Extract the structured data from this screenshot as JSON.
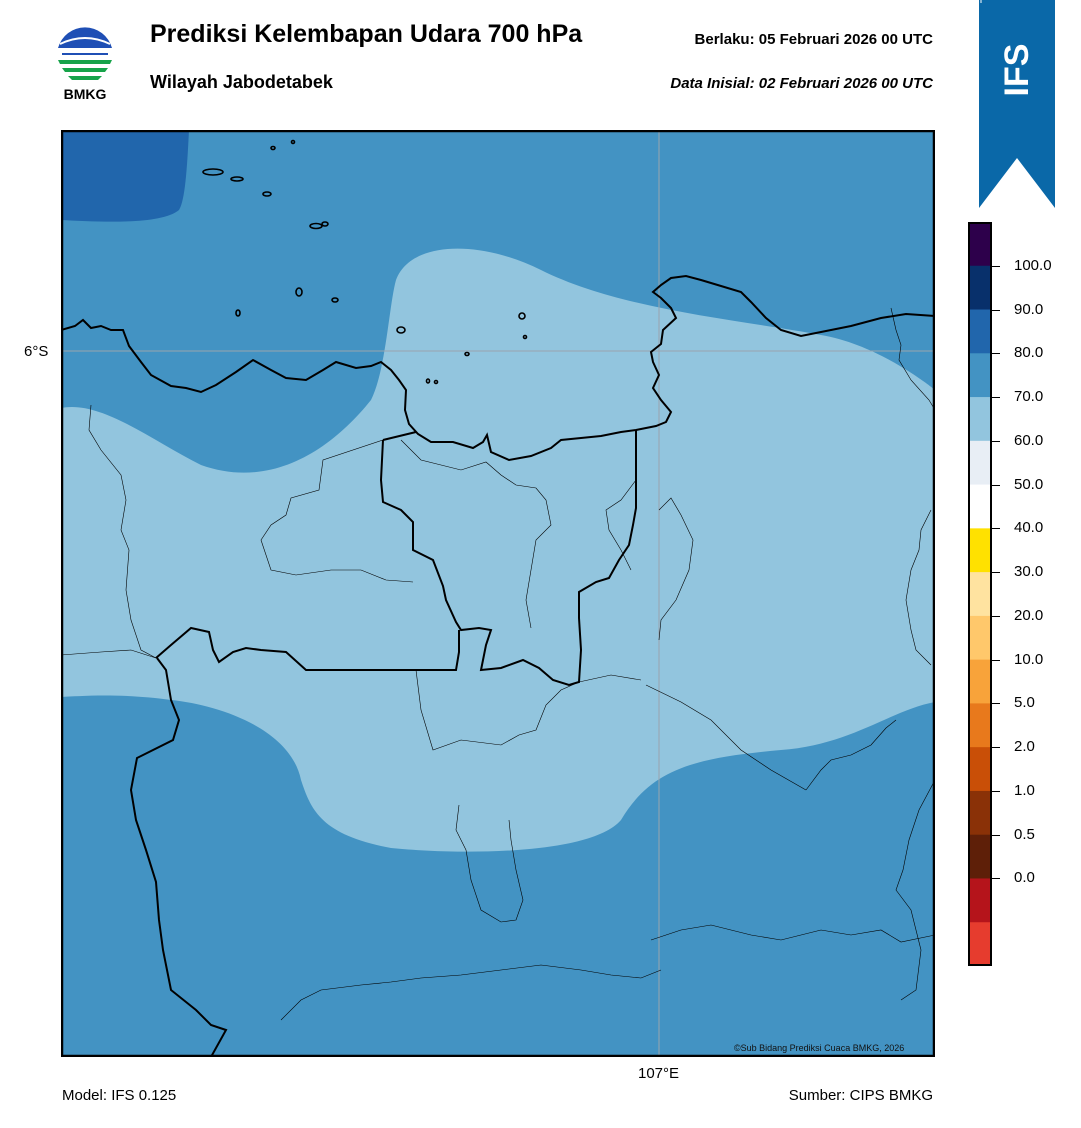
{
  "header": {
    "title": "Prediksi Kelembapan Udara 700 hPa",
    "region": "Wilayah Jabodetabek",
    "valid_label": "Berlaku:  05 Februari 2026 00 UTC",
    "init_label": "Data Inisial:  02 Februari 2026 00 UTC"
  },
  "logo": {
    "text": "BMKG",
    "icon": "bmkg-logo-icon"
  },
  "banner": {
    "text": "IFS",
    "color": "#0a68a8"
  },
  "axes": {
    "lat_tick": "6°S",
    "lon_tick": "107°E"
  },
  "map": {
    "credit": "©Sub Bidang Prediksi Cuaca BMKG, 2026",
    "fill_colors": {
      "band_60_70": "#92c5de",
      "band_70_80": "#4393c3",
      "band_80_90": "#2166ac"
    }
  },
  "colorbar": {
    "labels": [
      "100.0",
      "90.0",
      "80.0",
      "70.0",
      "60.0",
      "50.0",
      "40.0",
      "30.0",
      "20.0",
      "10.0",
      "5.0",
      "2.0",
      "1.0",
      "0.5",
      "0.0"
    ],
    "colors": [
      "#2d004b",
      "#08306b",
      "#2166ac",
      "#4393c3",
      "#92c5de",
      "#e8eef5",
      "#ffffff",
      "#ffe100",
      "#ffe3a0",
      "#ffc86b",
      "#f8a33a",
      "#e8791c",
      "#c94f07",
      "#8a3107",
      "#5e1f08",
      "#b5141b",
      "#e63c2e"
    ]
  },
  "footer": {
    "model": "Model: IFS 0.125",
    "source": "Sumber: CIPS BMKG"
  }
}
